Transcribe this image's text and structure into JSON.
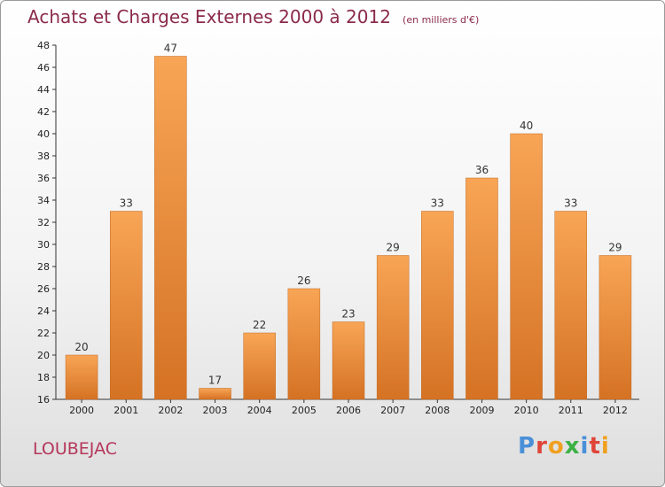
{
  "title": "Achats et Charges Externes 2000 à 2012",
  "unit": "(en milliers d'€)",
  "commune": "LOUBEJAC",
  "logo": {
    "text": "Proxiti",
    "colors": [
      "#4a90d9",
      "#e0453a",
      "#f0a020",
      "#3cb043",
      "#4a90d9",
      "#e0453a",
      "#f0a020"
    ]
  },
  "colors": {
    "bar_light": "#f8a556",
    "bar_dark": "#d57224",
    "title": "#8b2a4b",
    "commune": "#b5375a"
  },
  "chart_data": {
    "type": "bar",
    "categories": [
      "2000",
      "2001",
      "2002",
      "2003",
      "2004",
      "2005",
      "2006",
      "2007",
      "2008",
      "2009",
      "2010",
      "2011",
      "2012"
    ],
    "values": [
      20,
      33,
      47,
      17,
      22,
      26,
      23,
      29,
      33,
      36,
      40,
      33,
      29
    ],
    "ylim": [
      16,
      48
    ],
    "yticks": [
      16,
      18,
      20,
      22,
      24,
      26,
      28,
      30,
      32,
      34,
      36,
      38,
      40,
      42,
      44,
      46,
      48
    ],
    "grid": false,
    "xlabel": "",
    "ylabel": ""
  }
}
